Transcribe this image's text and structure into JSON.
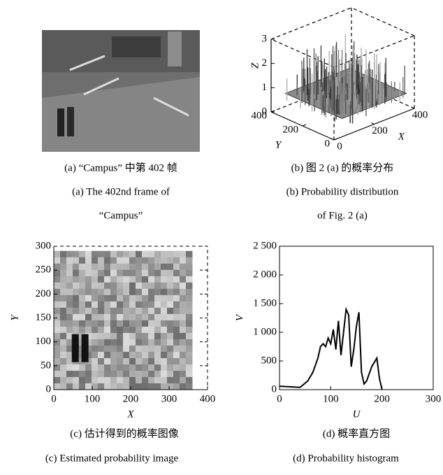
{
  "figure": {
    "panels": [
      {
        "caption_cn": "(a) “Campus” 中第 402 帧",
        "caption_en": [
          "(a) The 402nd frame of",
          "“Campus”"
        ]
      },
      {
        "caption_cn": "(b) 图 2 (a) 的概率分布",
        "caption_en": [
          "(b) Probability distribution",
          "of Fig. 2 (a)"
        ]
      },
      {
        "caption_cn": "(c) 估计得到的概率图像",
        "caption_en": [
          "(c) Estimated probability image"
        ]
      },
      {
        "caption_cn": "(d) 概率直方图",
        "caption_en": [
          "(d) Probability histogram"
        ]
      }
    ]
  },
  "chart_data": [
    {
      "type": "surface3d",
      "xlabel": "X",
      "ylabel": "Y",
      "zlabel": "Z",
      "xlim": [
        0,
        400
      ],
      "xticks": [
        0,
        200,
        400
      ],
      "ylim": [
        0,
        400
      ],
      "yticks": [
        0,
        200,
        400
      ],
      "zlim": [
        0,
        3
      ],
      "zticks": [
        0,
        1,
        2,
        3
      ]
    },
    {
      "type": "image",
      "xlabel": "X",
      "ylabel": "Y",
      "xlim": [
        0,
        400
      ],
      "xticks": [
        0,
        100,
        200,
        300,
        400
      ],
      "ylim": [
        0,
        300
      ],
      "yticks": [
        0,
        50,
        100,
        150,
        200,
        250,
        300
      ]
    },
    {
      "type": "line",
      "xlabel": "U",
      "ylabel": "V",
      "color": "#000000",
      "xlim": [
        0,
        300
      ],
      "xticks": [
        0,
        100,
        200,
        300
      ],
      "ylim": [
        0,
        2500
      ],
      "yticks": [
        0,
        500,
        {
          "value": 1000,
          "label": "1 000"
        },
        {
          "value": 1500,
          "label": "1 500"
        },
        {
          "value": 2000,
          "label": "2 000"
        },
        {
          "value": 2500,
          "label": "2 500"
        }
      ],
      "x": [
        0,
        20,
        40,
        55,
        65,
        75,
        80,
        85,
        90,
        95,
        100,
        105,
        110,
        115,
        120,
        125,
        130,
        135,
        140,
        145,
        150,
        155,
        160,
        165,
        170,
        180,
        190,
        195,
        200
      ],
      "values": [
        60,
        50,
        40,
        150,
        300,
        550,
        750,
        800,
        750,
        900,
        800,
        1050,
        700,
        1200,
        600,
        1000,
        1400,
        1300,
        400,
        700,
        1100,
        1350,
        300,
        100,
        150,
        400,
        550,
        200,
        0
      ]
    }
  ]
}
